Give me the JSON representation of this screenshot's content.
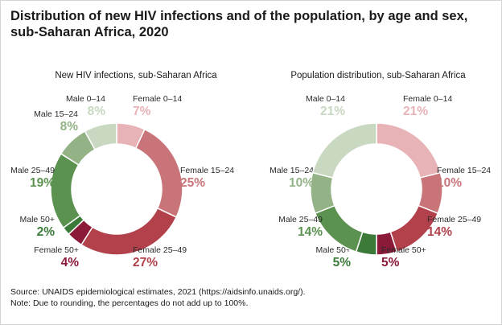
{
  "title_line1": "Distribution of new HIV infections and of the population, by age and sex,",
  "title_line2": "sub-Saharan Africa, 2020",
  "footer": {
    "source": "Source: UNAIDS epidemiological estimates, 2021 (https://aidsinfo.unaids.org/).",
    "note": "Note:  Due to rounding, the percentages do not add up to 100%."
  },
  "colors": {
    "female_0_14": "#e7b3b6",
    "female_15_24": "#c87479",
    "female_25_49": "#b2414c",
    "female_50": "#8a1a38",
    "male_50": "#3c7a3a",
    "male_25_49": "#5b924f",
    "male_15_24": "#93b387",
    "male_0_14": "#c9d8c1"
  },
  "chart_data": [
    {
      "type": "pie",
      "title": "New HIV infections, sub-Saharan Africa",
      "slices": [
        {
          "label": "Female 0–14",
          "value": 7,
          "display": "7%",
          "color_key": "female_0_14"
        },
        {
          "label": "Female 15–24",
          "value": 25,
          "display": "25%",
          "color_key": "female_15_24"
        },
        {
          "label": "Female 25–49",
          "value": 27,
          "display": "27%",
          "color_key": "female_25_49"
        },
        {
          "label": "Female 50+",
          "value": 4,
          "display": "4%",
          "color_key": "female_50"
        },
        {
          "label": "Male 50+",
          "value": 2,
          "display": "2%",
          "color_key": "male_50"
        },
        {
          "label": "Male 25–49",
          "value": 19,
          "display": "19%",
          "color_key": "male_25_49"
        },
        {
          "label": "Male 15–24",
          "value": 8,
          "display": "8%",
          "color_key": "male_15_24"
        },
        {
          "label": "Male 0–14",
          "value": 8,
          "display": "8%",
          "color_key": "male_0_14"
        }
      ]
    },
    {
      "type": "pie",
      "title": "Population distribution, sub-Saharan Africa",
      "slices": [
        {
          "label": "Female 0–14",
          "value": 21,
          "display": "21%",
          "color_key": "female_0_14"
        },
        {
          "label": "Female 15–24",
          "value": 10,
          "display": "10%",
          "color_key": "female_15_24"
        },
        {
          "label": "Female 25–49",
          "value": 14,
          "display": "14%",
          "color_key": "female_25_49"
        },
        {
          "label": "Female 50+",
          "value": 5,
          "display": "5%",
          "color_key": "female_50"
        },
        {
          "label": "Male 50+",
          "value": 5,
          "display": "5%",
          "color_key": "male_50"
        },
        {
          "label": "Male 25–49",
          "value": 14,
          "display": "14%",
          "color_key": "male_25_49"
        },
        {
          "label": "Male 15–24",
          "value": 10,
          "display": "10%",
          "color_key": "male_15_24"
        },
        {
          "label": "Male 0–14",
          "value": 21,
          "display": "21%",
          "color_key": "male_0_14"
        }
      ]
    }
  ]
}
